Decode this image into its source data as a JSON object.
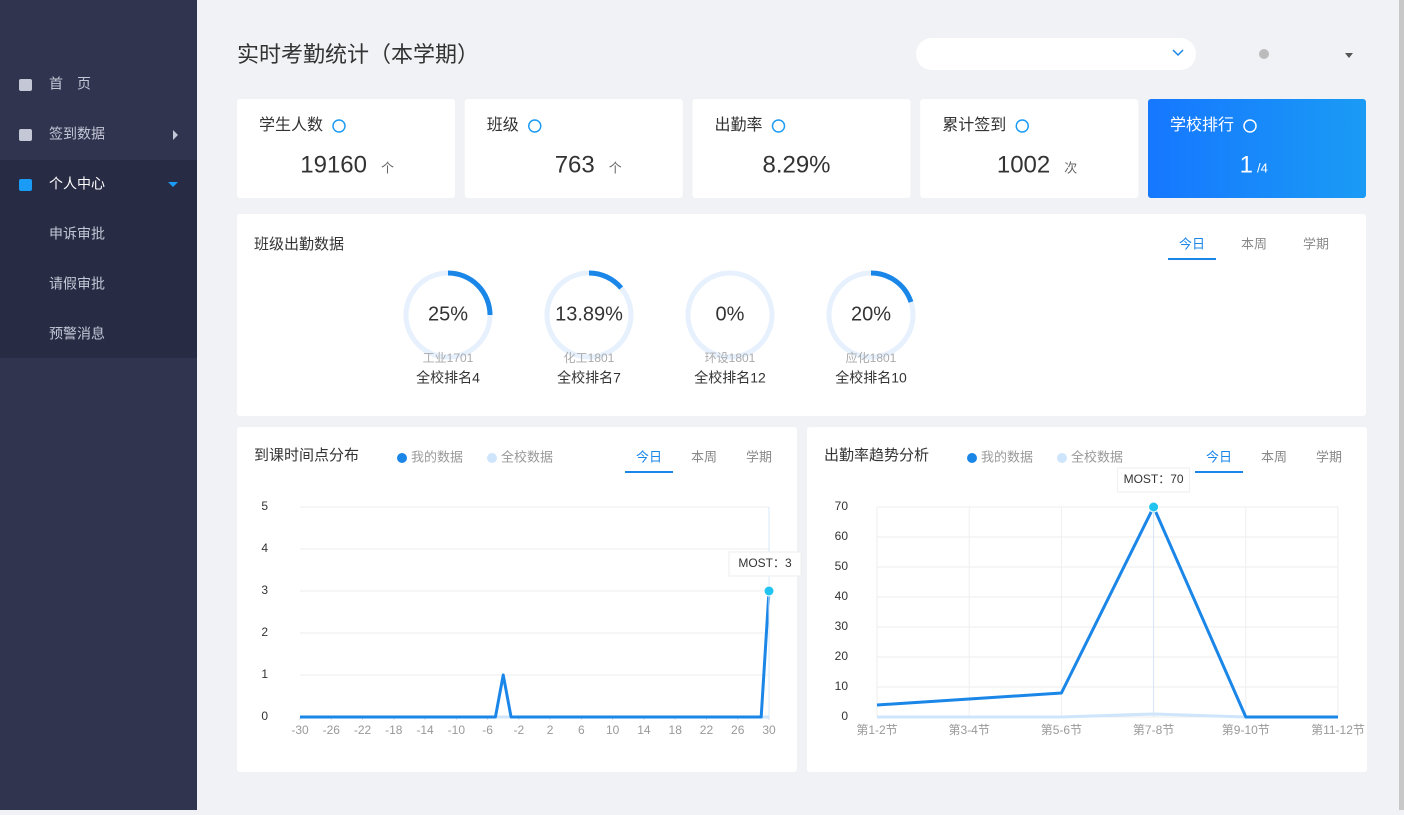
{
  "sidebar": {
    "items": [
      "首　页",
      "签到数据",
      "个人中心",
      "申诉审批",
      "请假审批",
      "预警消息"
    ]
  },
  "header": {
    "title": "实时考勤统计（本学期）"
  },
  "stats": [
    {
      "label": "学生人数",
      "value": 19160,
      "unit": "个"
    },
    {
      "label": "班级",
      "value": 763,
      "unit": "个"
    },
    {
      "label": "出勤率",
      "value": "8.29%"
    },
    {
      "label": "累计签到",
      "value": 1002,
      "unit": "次"
    },
    {
      "label": "学校排行",
      "value": 1,
      "unit": "/4"
    }
  ],
  "class_attendance": {
    "title": "班级出勤数据",
    "tabs": [
      "今日",
      "本周",
      "学期"
    ],
    "values": [
      25,
      13.89,
      0,
      20
    ],
    "value_labels": [
      "25%",
      "13.89%",
      "0%",
      "20%"
    ],
    "classes": [
      "工业1701",
      "化工1801",
      "环设1801",
      "应化1801"
    ],
    "ranks": [
      "全校排名4",
      "全校排名7",
      "全校排名12",
      "全校排名10"
    ]
  },
  "chart_data": [
    {
      "type": "line",
      "title": "到课时间点分布",
      "tabs": [
        "今日",
        "本周",
        "学期"
      ],
      "x": [
        -30,
        -5,
        -4,
        -3,
        29,
        30
      ],
      "series": [
        {
          "name": "我的数据",
          "color": "#1a86e8",
          "values": [
            0,
            0,
            1,
            0,
            0,
            3
          ]
        },
        {
          "name": "全校数据",
          "color": "#cfe5fb",
          "values": [
            0,
            0,
            0,
            0,
            0,
            0
          ]
        }
      ],
      "xlim": [
        -30,
        30
      ],
      "xticks": [
        -30,
        -26,
        -22,
        -18,
        -14,
        -10,
        -6,
        -2,
        2,
        6,
        10,
        14,
        18,
        22,
        26,
        30
      ],
      "ylim": [
        0,
        5
      ],
      "yticks": [
        0,
        1,
        2,
        3,
        4,
        5
      ],
      "annotation": "MOST：3"
    },
    {
      "type": "line",
      "title": "出勤率趋势分析",
      "tabs": [
        "今日",
        "本周",
        "学期"
      ],
      "categories": [
        "第1-2节",
        "第3-4节",
        "第5-6节",
        "第7-8节",
        "第9-10节",
        "第11-12节"
      ],
      "series": [
        {
          "name": "我的数据",
          "color": "#1a86e8",
          "values": [
            4,
            6,
            8,
            70,
            0,
            0
          ]
        },
        {
          "name": "全校数据",
          "color": "#cfe5fb",
          "values": [
            0,
            0,
            0,
            1,
            0,
            0
          ]
        }
      ],
      "ylim": [
        0,
        70
      ],
      "yticks": [
        0,
        10,
        20,
        30,
        40,
        50,
        60,
        70
      ],
      "annotation": "MOST：70"
    }
  ]
}
